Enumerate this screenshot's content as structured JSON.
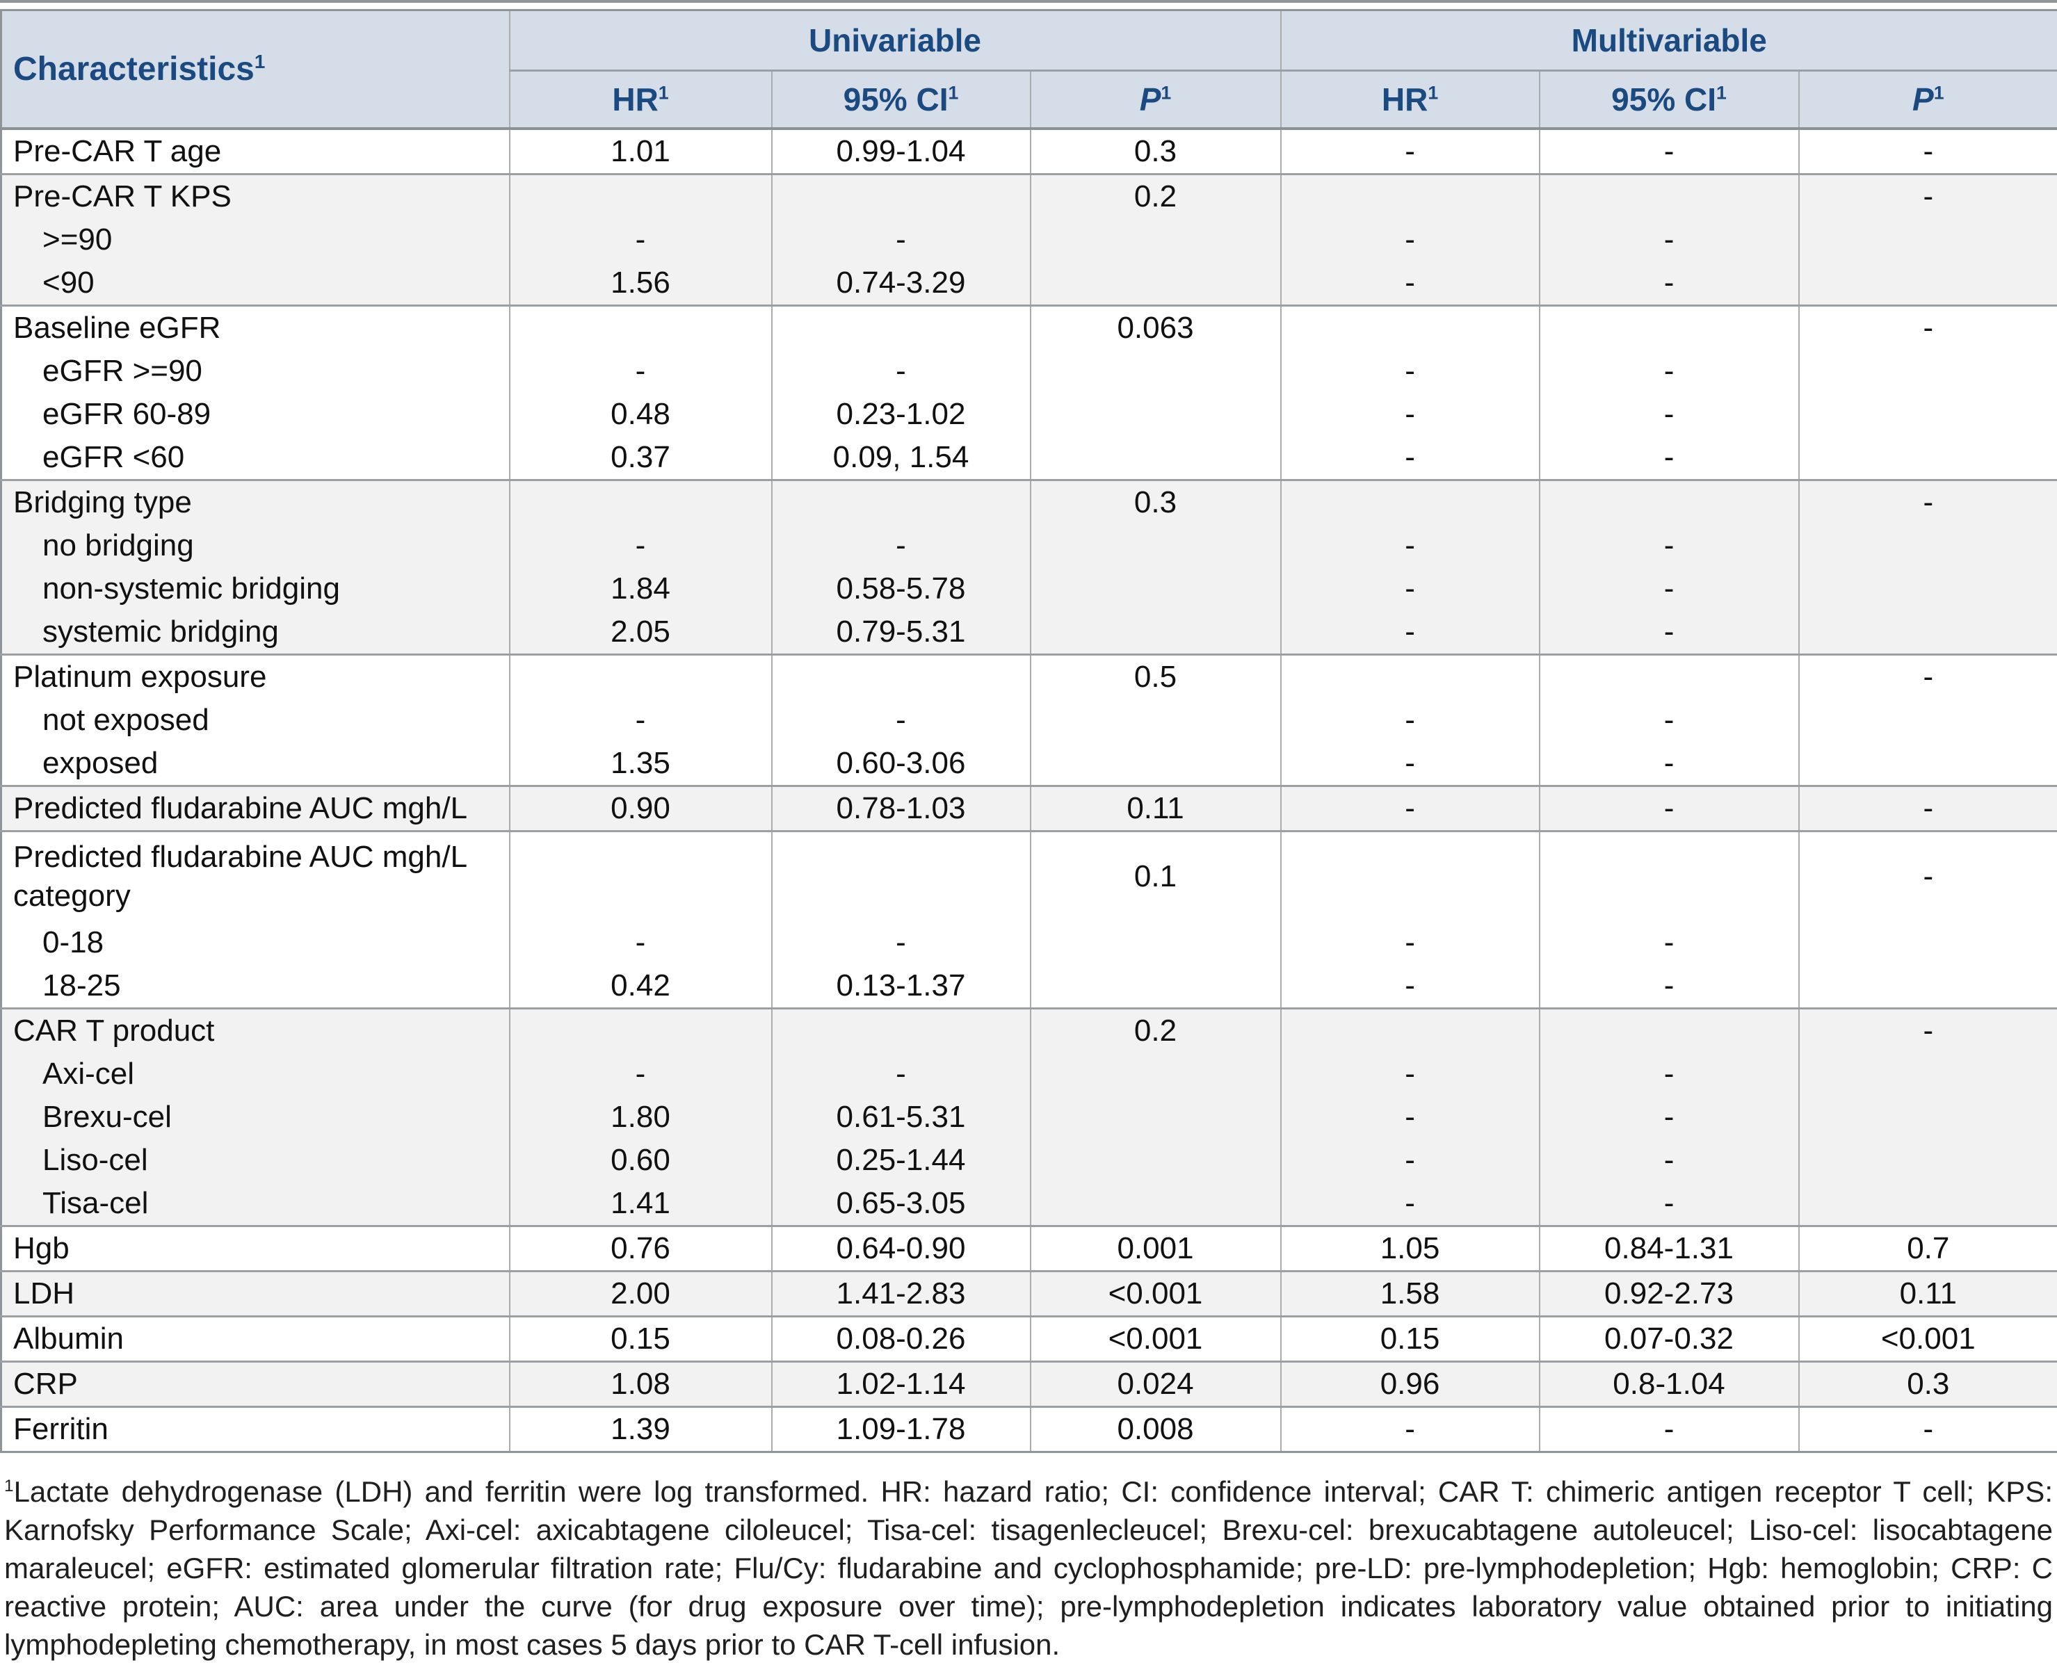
{
  "table": {
    "header": {
      "characteristics": "Characteristics",
      "univariable": "Univariable",
      "multivariable": "Multivariable",
      "hr": "HR",
      "ci": "95% CI",
      "p": "P",
      "sup": "1"
    },
    "rows": [
      {
        "label": "Pre-CAR T age",
        "indent": false,
        "start": true,
        "shade": "white",
        "tall": false,
        "c": [
          "1.01",
          "0.99-1.04",
          "0.3",
          "-",
          "-",
          "-"
        ]
      },
      {
        "label": "Pre-CAR T KPS",
        "indent": false,
        "start": true,
        "shade": "gray",
        "tall": false,
        "c": [
          "",
          "",
          "0.2",
          "",
          "",
          "-"
        ]
      },
      {
        "label": ">=90",
        "indent": true,
        "start": false,
        "shade": "gray",
        "tall": false,
        "c": [
          "-",
          "-",
          "",
          "-",
          "-",
          ""
        ]
      },
      {
        "label": "<90",
        "indent": true,
        "start": false,
        "shade": "gray",
        "tall": false,
        "c": [
          "1.56",
          "0.74-3.29",
          "",
          "-",
          "-",
          ""
        ]
      },
      {
        "label": "Baseline eGFR",
        "indent": false,
        "start": true,
        "shade": "white",
        "tall": false,
        "c": [
          "",
          "",
          "0.063",
          "",
          "",
          "-"
        ]
      },
      {
        "label": "eGFR >=90",
        "indent": true,
        "start": false,
        "shade": "white",
        "tall": false,
        "c": [
          "-",
          "-",
          "",
          "-",
          "-",
          ""
        ]
      },
      {
        "label": "eGFR 60-89",
        "indent": true,
        "start": false,
        "shade": "white",
        "tall": false,
        "c": [
          "0.48",
          "0.23-1.02",
          "",
          "-",
          "-",
          ""
        ]
      },
      {
        "label": "eGFR <60",
        "indent": true,
        "start": false,
        "shade": "white",
        "tall": false,
        "c": [
          "0.37",
          "0.09, 1.54",
          "",
          "-",
          "-",
          ""
        ]
      },
      {
        "label": "Bridging type",
        "indent": false,
        "start": true,
        "shade": "gray",
        "tall": false,
        "c": [
          "",
          "",
          "0.3",
          "",
          "",
          "-"
        ]
      },
      {
        "label": "no bridging",
        "indent": true,
        "start": false,
        "shade": "gray",
        "tall": false,
        "c": [
          "-",
          "-",
          "",
          "-",
          "-",
          ""
        ]
      },
      {
        "label": "non-systemic bridging",
        "indent": true,
        "start": false,
        "shade": "gray",
        "tall": false,
        "c": [
          "1.84",
          "0.58-5.78",
          "",
          "-",
          "-",
          ""
        ]
      },
      {
        "label": "systemic bridging",
        "indent": true,
        "start": false,
        "shade": "gray",
        "tall": false,
        "c": [
          "2.05",
          "0.79-5.31",
          "",
          "-",
          "-",
          ""
        ]
      },
      {
        "label": "Platinum exposure",
        "indent": false,
        "start": true,
        "shade": "white",
        "tall": false,
        "c": [
          "",
          "",
          "0.5",
          "",
          "",
          "-"
        ]
      },
      {
        "label": "not exposed",
        "indent": true,
        "start": false,
        "shade": "white",
        "tall": false,
        "c": [
          "-",
          "-",
          "",
          "-",
          "-",
          ""
        ]
      },
      {
        "label": "exposed",
        "indent": true,
        "start": false,
        "shade": "white",
        "tall": false,
        "c": [
          "1.35",
          "0.60-3.06",
          "",
          "-",
          "-",
          ""
        ]
      },
      {
        "label": "Predicted fludarabine AUC mgh/L",
        "indent": false,
        "start": true,
        "shade": "gray",
        "tall": false,
        "c": [
          "0.90",
          "0.78-1.03",
          "0.11",
          "-",
          "-",
          "-"
        ]
      },
      {
        "label": "Predicted fludarabine AUC mgh/L category",
        "indent": false,
        "start": true,
        "shade": "white",
        "tall": true,
        "c": [
          "",
          "",
          "0.1",
          "",
          "",
          "-"
        ]
      },
      {
        "label": "0-18",
        "indent": true,
        "start": false,
        "shade": "white",
        "tall": false,
        "c": [
          "-",
          "-",
          "",
          "-",
          "-",
          ""
        ]
      },
      {
        "label": "18-25",
        "indent": true,
        "start": false,
        "shade": "white",
        "tall": false,
        "c": [
          "0.42",
          "0.13-1.37",
          "",
          "-",
          "-",
          ""
        ]
      },
      {
        "label": "CAR T product",
        "indent": false,
        "start": true,
        "shade": "gray",
        "tall": false,
        "c": [
          "",
          "",
          "0.2",
          "",
          "",
          "-"
        ]
      },
      {
        "label": "Axi-cel",
        "indent": true,
        "start": false,
        "shade": "gray",
        "tall": false,
        "c": [
          "-",
          "-",
          "",
          "-",
          "-",
          ""
        ]
      },
      {
        "label": "Brexu-cel",
        "indent": true,
        "start": false,
        "shade": "gray",
        "tall": false,
        "c": [
          "1.80",
          "0.61-5.31",
          "",
          "-",
          "-",
          ""
        ]
      },
      {
        "label": "Liso-cel",
        "indent": true,
        "start": false,
        "shade": "gray",
        "tall": false,
        "c": [
          "0.60",
          "0.25-1.44",
          "",
          "-",
          "-",
          ""
        ]
      },
      {
        "label": "Tisa-cel",
        "indent": true,
        "start": false,
        "shade": "gray",
        "tall": false,
        "c": [
          "1.41",
          "0.65-3.05",
          "",
          "-",
          "-",
          ""
        ]
      },
      {
        "label": "Hgb",
        "indent": false,
        "start": true,
        "shade": "white",
        "tall": false,
        "c": [
          "0.76",
          "0.64-0.90",
          "0.001",
          "1.05",
          "0.84-1.31",
          "0.7"
        ]
      },
      {
        "label": "LDH",
        "indent": false,
        "start": true,
        "shade": "gray",
        "tall": false,
        "c": [
          "2.00",
          "1.41-2.83",
          "<0.001",
          "1.58",
          "0.92-2.73",
          "0.11"
        ]
      },
      {
        "label": "Albumin",
        "indent": false,
        "start": true,
        "shade": "white",
        "tall": false,
        "c": [
          "0.15",
          "0.08-0.26",
          "<0.001",
          "0.15",
          "0.07-0.32",
          "<0.001"
        ]
      },
      {
        "label": "CRP",
        "indent": false,
        "start": true,
        "shade": "gray",
        "tall": false,
        "c": [
          "1.08",
          "1.02-1.14",
          "0.024",
          "0.96",
          "0.8-1.04",
          "0.3"
        ]
      },
      {
        "label": "Ferritin",
        "indent": false,
        "start": true,
        "shade": "white",
        "tall": false,
        "c": [
          "1.39",
          "1.09-1.78",
          "0.008",
          "-",
          "-",
          "-"
        ]
      }
    ]
  },
  "footnote": {
    "sup": "1",
    "text": "Lactate dehydrogenase (LDH) and ferritin were log transformed. HR: hazard ratio; CI: confidence interval; CAR T: chimeric antigen receptor T cell; KPS: Karnofsky Performance Scale; Axi-cel: axicabtagene ciloleucel; Tisa-cel: tisagenlecleucel; Brexu-cel: brexucabtagene autoleucel; Liso-cel: lisocabtagene maraleucel; eGFR: estimated glomerular filtration rate; Flu/Cy: fludarabine and cyclophosphamide; pre-LD: pre-lymphodepletion; Hgb: hemoglobin; CRP: C reactive protein; AUC: area under the curve (for drug exposure over time); pre-lymphodepletion indicates laboratory value obtained prior to initiating lymphodepleting chemotherapy, in most cases 5 days prior to CAR T-cell infusion."
  },
  "colors": {
    "header_bg": "#d5dee8",
    "header_text": "#1b4a80",
    "row_shade": "#f2f2f2",
    "border": "#9aa0a5",
    "outer_border": "#8f9499"
  }
}
